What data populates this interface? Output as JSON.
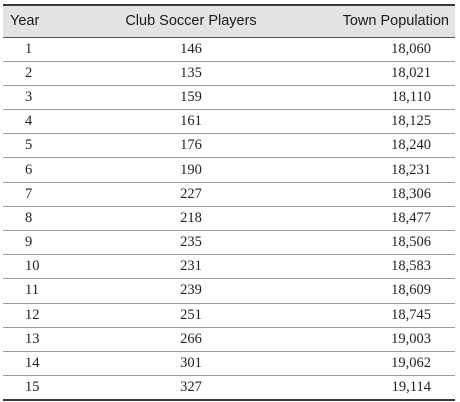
{
  "table": {
    "headers": {
      "year": "Year",
      "players": "Club Soccer Players",
      "population": "Town Population"
    },
    "rows": [
      {
        "year": "1",
        "players": "146",
        "population": "18,060"
      },
      {
        "year": "2",
        "players": "135",
        "population": "18,021"
      },
      {
        "year": "3",
        "players": "159",
        "population": "18,110"
      },
      {
        "year": "4",
        "players": "161",
        "population": "18,125"
      },
      {
        "year": "5",
        "players": "176",
        "population": "18,240"
      },
      {
        "year": "6",
        "players": "190",
        "population": "18,231"
      },
      {
        "year": "7",
        "players": "227",
        "population": "18,306"
      },
      {
        "year": "8",
        "players": "218",
        "population": "18,477"
      },
      {
        "year": "9",
        "players": "235",
        "population": "18,506"
      },
      {
        "year": "10",
        "players": "231",
        "population": "18,583"
      },
      {
        "year": "11",
        "players": "239",
        "population": "18,609"
      },
      {
        "year": "12",
        "players": "251",
        "population": "18,745"
      },
      {
        "year": "13",
        "players": "266",
        "population": "19,003"
      },
      {
        "year": "14",
        "players": "301",
        "population": "19,062"
      },
      {
        "year": "15",
        "players": "327",
        "population": "19,114"
      }
    ]
  }
}
